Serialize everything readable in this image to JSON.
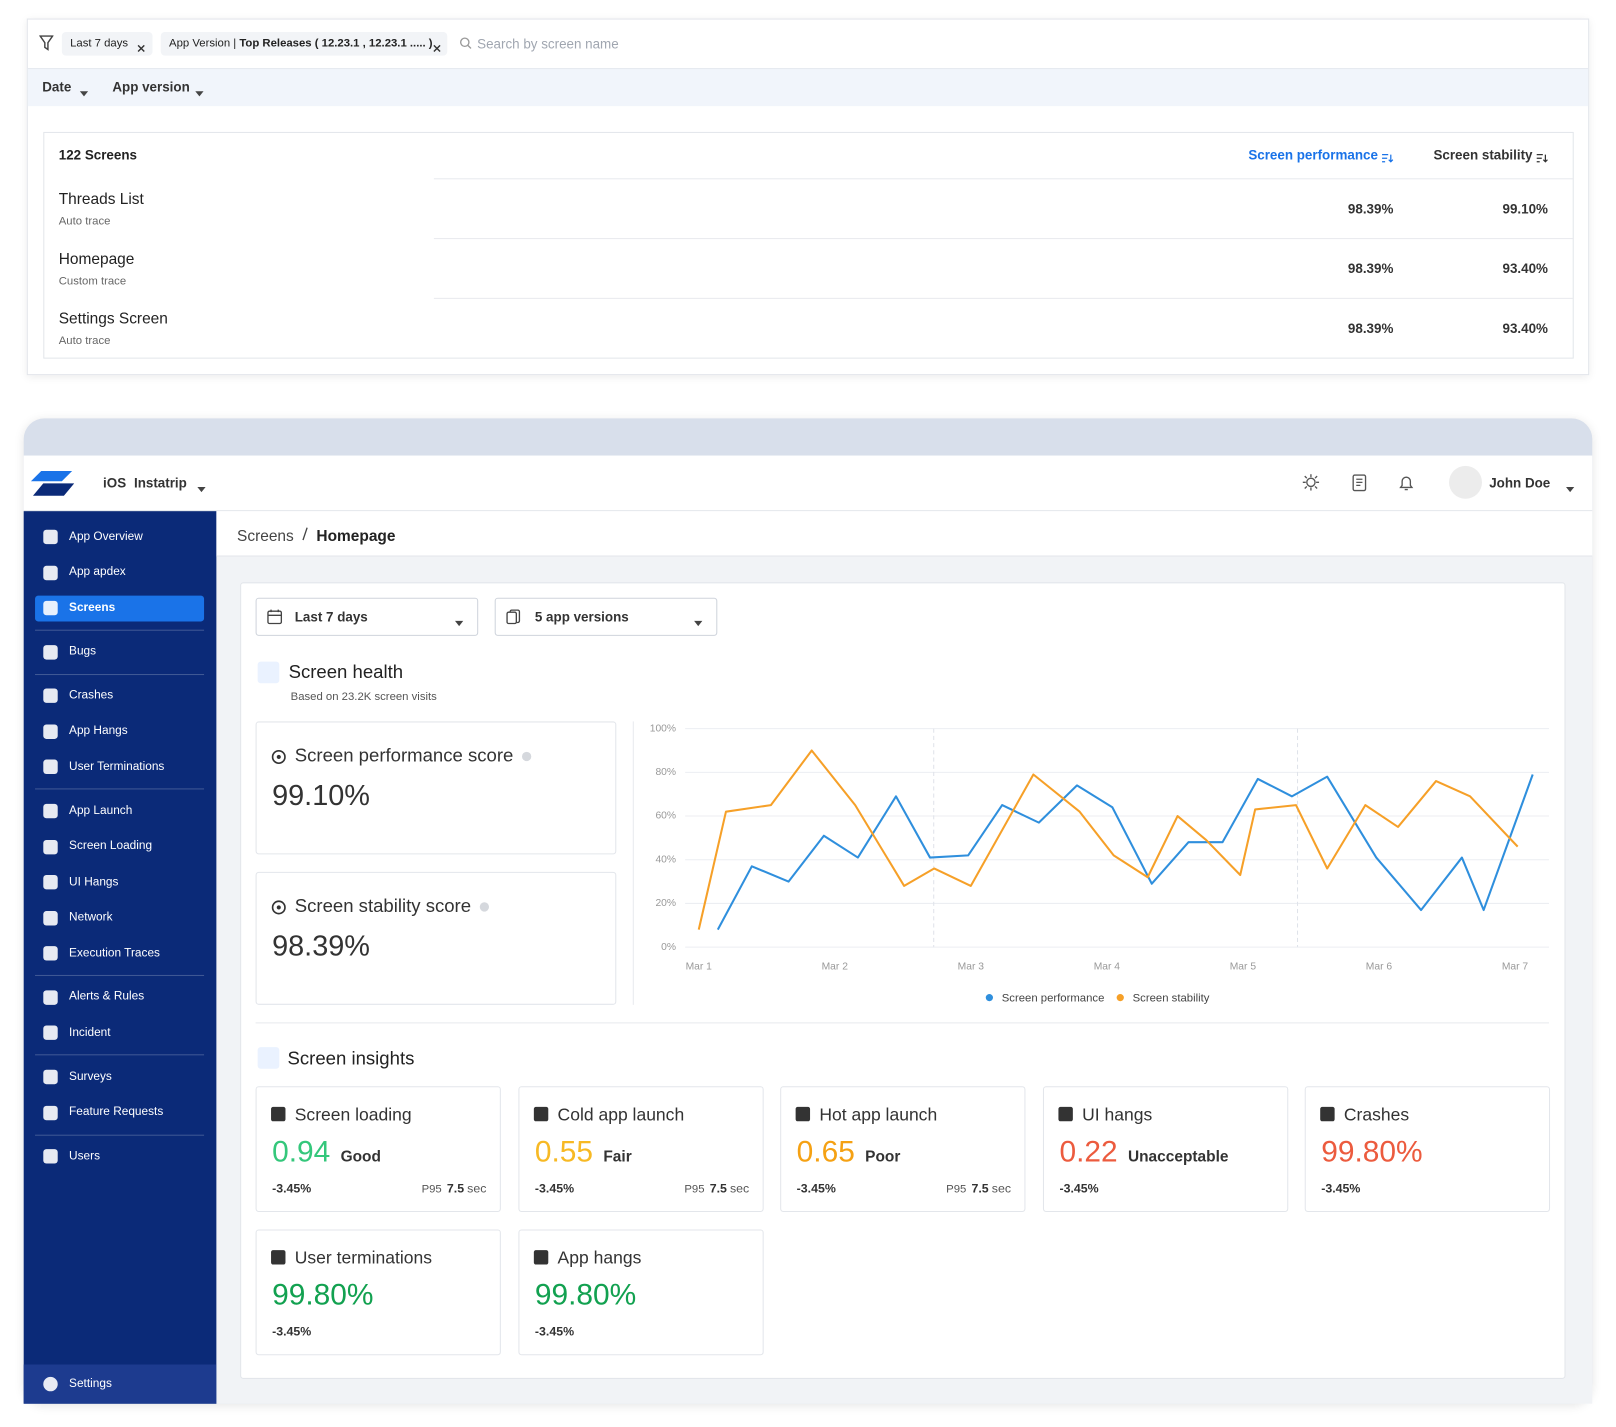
{
  "filter_panel": {
    "chips": [
      {
        "text": "Last 7 days"
      },
      {
        "label": "App Version |",
        "value": "Top Releases ( 12.23.1 , 12.23.1 ..... )"
      }
    ],
    "search_placeholder": "Search by screen name",
    "tabs": [
      "Date",
      "App version"
    ],
    "table": {
      "title": "122 Screens",
      "columns": [
        "Screen performance",
        "Screen stability"
      ],
      "rows": [
        {
          "name": "Threads List",
          "trace": "Auto trace",
          "cells": [
            "98.39%",
            "99.10%"
          ]
        },
        {
          "name": "Homepage",
          "trace": "Custom trace",
          "cells": [
            "98.39%",
            "93.40%"
          ]
        },
        {
          "name": "Settings Screen",
          "trace": "Auto trace",
          "cells": [
            "98.39%",
            "93.40%"
          ]
        }
      ]
    }
  },
  "app": {
    "platform": "iOS",
    "name": "Instatrip",
    "user": "John Doe",
    "nav": [
      [
        "App Overview",
        "App apdex",
        "Screens"
      ],
      [
        "Bugs"
      ],
      [
        "Crashes",
        "App Hangs",
        "User Terminations"
      ],
      [
        "App Launch",
        "Screen Loading",
        "UI Hangs",
        "Network",
        "Execution Traces"
      ],
      [
        "Alerts & Rules",
        "Incident"
      ],
      [
        "Surveys",
        "Feature Requests"
      ],
      [
        "Users"
      ]
    ],
    "active_nav": [
      0,
      2
    ],
    "settings": "Settings",
    "breadcrumb": [
      "Screens",
      "Homepage"
    ],
    "filters": [
      "Last 7 days",
      "5 app versions"
    ],
    "health": {
      "title": "Screen health",
      "subtitle": "Based on 23.2K screen visits",
      "scores": [
        {
          "label": "Screen performance score",
          "value": "99.10%"
        },
        {
          "label": "Screen stability score",
          "value": "98.39%"
        }
      ]
    },
    "insights": {
      "title": "Screen insights",
      "cards": [
        {
          "title": "Screen loading",
          "value": "0.94",
          "rating": "Good",
          "change": "-3.45%",
          "p95": {
            "label": "P95",
            "value": "7.5",
            "unit": "sec"
          },
          "color": "#34c77b"
        },
        {
          "title": "Cold app launch",
          "value": "0.55",
          "rating": "Fair",
          "change": "-3.45%",
          "p95": {
            "label": "P95",
            "value": "7.5",
            "unit": "sec"
          },
          "color": "#f7b924"
        },
        {
          "title": "Hot app launch",
          "value": "0.65",
          "rating": "Poor",
          "change": "-3.45%",
          "p95": {
            "label": "P95",
            "value": "7.5",
            "unit": "sec"
          },
          "color": "#f5a113"
        },
        {
          "title": "UI hangs",
          "value": "0.22",
          "rating": "Unacceptable",
          "change": "-3.45%",
          "color": "#ec5b3e"
        },
        {
          "title": "Crashes",
          "value": "99.80%",
          "change": "-3.45%",
          "color": "#ec5b3e"
        },
        {
          "title": "User terminations",
          "value": "99.80%",
          "change": "-3.45%",
          "color": "#12a150"
        },
        {
          "title": "App hangs",
          "value": "99.80%",
          "change": "-3.45%",
          "color": "#12a150"
        }
      ]
    }
  },
  "chart_data": {
    "type": "line",
    "xlim": [
      0.9,
      7.25
    ],
    "xticks": [
      {
        "value": 1,
        "label": "Mar 1"
      },
      {
        "value": 2,
        "label": "Mar 2"
      },
      {
        "value": 3,
        "label": "Mar 3"
      },
      {
        "value": 4,
        "label": "Mar 4"
      },
      {
        "value": 5,
        "label": "Mar 5"
      },
      {
        "value": 6,
        "label": "Mar 6"
      },
      {
        "value": 7,
        "label": "Mar 7"
      }
    ],
    "ylim": [
      0,
      100
    ],
    "yticks": [
      {
        "value": 0,
        "label": "0%"
      },
      {
        "value": 20,
        "label": "20%"
      },
      {
        "value": 40,
        "label": "40%"
      },
      {
        "value": 60,
        "label": "60%"
      },
      {
        "value": 80,
        "label": "80%"
      },
      {
        "value": 100,
        "label": "100%"
      }
    ],
    "grid": true,
    "series": [
      {
        "name": "Screen performance",
        "color": "#2f8fdd",
        "x": [
          1.14,
          1.39,
          1.66,
          1.92,
          2.17,
          2.45,
          2.7,
          2.98,
          3.23,
          3.5,
          3.78,
          4.04,
          4.33,
          4.6,
          4.85,
          5.11,
          5.36,
          5.62,
          5.98,
          6.31,
          6.61,
          6.77,
          7.13
        ],
        "values": [
          8,
          37,
          30,
          51,
          41,
          69,
          41,
          42,
          65,
          57,
          74,
          64,
          29,
          48,
          48,
          77,
          69,
          78,
          41,
          17,
          41,
          17,
          79
        ]
      },
      {
        "name": "Screen stability",
        "color": "#f6a028",
        "x": [
          1.0,
          1.2,
          1.53,
          1.83,
          2.15,
          2.51,
          2.73,
          3.0,
          3.46,
          3.8,
          4.05,
          4.3,
          4.52,
          4.73,
          4.98,
          5.09,
          5.39,
          5.62,
          5.9,
          6.14,
          6.42,
          6.67,
          7.02
        ],
        "values": [
          8,
          62,
          65,
          90,
          65,
          28,
          36,
          28,
          79,
          62,
          42,
          32,
          60,
          49,
          33,
          63,
          65,
          36,
          65,
          55,
          76,
          69,
          46
        ]
      }
    ]
  }
}
